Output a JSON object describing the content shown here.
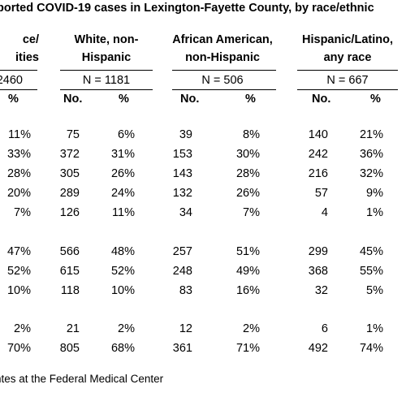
{
  "title": "ported COVID-19 cases in Lexington-Fayette County, by race/ethnic",
  "groups": [
    {
      "head1": "ce/",
      "head2": "ities",
      "n": "2460",
      "col_no": "",
      "col_pct": "%",
      "rows": [
        {
          "no": "",
          "pct": "11%"
        },
        {
          "no": "",
          "pct": "33%"
        },
        {
          "no": "",
          "pct": "28%"
        },
        {
          "no": "",
          "pct": "20%"
        },
        {
          "no": "",
          "pct": "7%"
        },
        {
          "no": "",
          "pct": "47%"
        },
        {
          "no": "",
          "pct": "52%"
        },
        {
          "no": "",
          "pct": "10%"
        },
        {
          "no": "",
          "pct": "2%"
        },
        {
          "no": "",
          "pct": "70%"
        }
      ]
    },
    {
      "head1": "White, non-",
      "head2": "Hispanic",
      "n": "N = 1181",
      "col_no": "No.",
      "col_pct": "%",
      "rows": [
        {
          "no": "75",
          "pct": "6%"
        },
        {
          "no": "372",
          "pct": "31%"
        },
        {
          "no": "305",
          "pct": "26%"
        },
        {
          "no": "289",
          "pct": "24%"
        },
        {
          "no": "126",
          "pct": "11%"
        },
        {
          "no": "566",
          "pct": "48%"
        },
        {
          "no": "615",
          "pct": "52%"
        },
        {
          "no": "118",
          "pct": "10%"
        },
        {
          "no": "21",
          "pct": "2%"
        },
        {
          "no": "805",
          "pct": "68%"
        }
      ]
    },
    {
      "head1": "African American,",
      "head2": "non-Hispanic",
      "n": "N = 506",
      "col_no": "No.",
      "col_pct": "%",
      "rows": [
        {
          "no": "39",
          "pct": "8%"
        },
        {
          "no": "153",
          "pct": "30%"
        },
        {
          "no": "143",
          "pct": "28%"
        },
        {
          "no": "132",
          "pct": "26%"
        },
        {
          "no": "34",
          "pct": "7%"
        },
        {
          "no": "257",
          "pct": "51%"
        },
        {
          "no": "248",
          "pct": "49%"
        },
        {
          "no": "83",
          "pct": "16%"
        },
        {
          "no": "12",
          "pct": "2%"
        },
        {
          "no": "361",
          "pct": "71%"
        }
      ]
    },
    {
      "head1": "Hispanic/Latino,",
      "head2": "any race",
      "n": "N = 667",
      "col_no": "No.",
      "col_pct": "%",
      "rows": [
        {
          "no": "140",
          "pct": "21%"
        },
        {
          "no": "242",
          "pct": "36%"
        },
        {
          "no": "216",
          "pct": "32%"
        },
        {
          "no": "57",
          "pct": "9%"
        },
        {
          "no": "4",
          "pct": "1%"
        },
        {
          "no": "299",
          "pct": "45%"
        },
        {
          "no": "368",
          "pct": "55%"
        },
        {
          "no": "32",
          "pct": "5%"
        },
        {
          "no": "6",
          "pct": "1%"
        },
        {
          "no": "492",
          "pct": "74%"
        }
      ]
    }
  ],
  "footnote": "ntes at the Federal Medical Center"
}
